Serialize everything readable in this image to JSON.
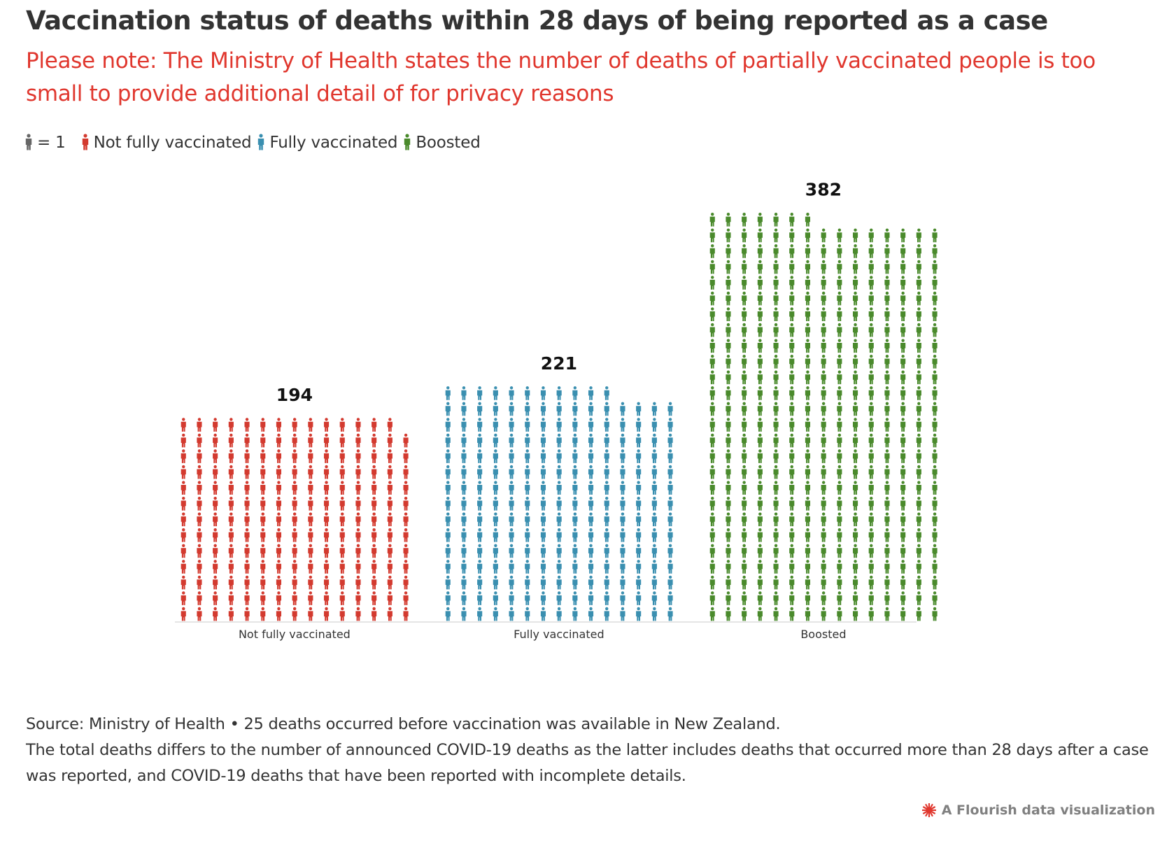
{
  "title": "Vaccination status of deaths within 28 days of being reported as a case",
  "subtitle": "Please note: The Ministry of Health states the number of deaths of partially vaccinated people is too small to provide additional detail of for privacy reasons",
  "legend": {
    "unit_label": "= 1",
    "items": [
      {
        "label": "Not fully vaccinated",
        "color": "#d33a2f",
        "icon": "person-icon"
      },
      {
        "label": "Fully vaccinated",
        "color": "#3a8fb0",
        "icon": "person-icon"
      },
      {
        "label": "Boosted",
        "color": "#4a8a2c",
        "icon": "person-icon"
      }
    ],
    "unit_color": "#666666"
  },
  "chart_data": {
    "type": "bar",
    "subtype": "pictogram",
    "unit": "1 person per icon",
    "categories": [
      "Not fully vaccinated",
      "Fully vaccinated",
      "Boosted"
    ],
    "values": [
      194,
      221,
      382
    ],
    "value_labels": [
      "194",
      "221",
      "382"
    ],
    "colors": [
      "#d33a2f",
      "#3a8fb0",
      "#4a8a2c"
    ],
    "title": "Vaccination status of deaths within 28 days of being reported as a case",
    "xlabel": "",
    "ylabel": ""
  },
  "footer": {
    "source": "Source: Ministry of Health • 25 deaths occurred before vaccination was available in New Zealand.",
    "note": "The total deaths differs to the number of announced COVID-19 deaths as the latter includes deaths that occurred more than 28 days after a case was reported, and COVID-19 deaths that have been reported with incomplete details."
  },
  "credit": {
    "text": "A Flourish data visualization",
    "icon": "flourish-logo-icon",
    "color": "#e0372e"
  }
}
